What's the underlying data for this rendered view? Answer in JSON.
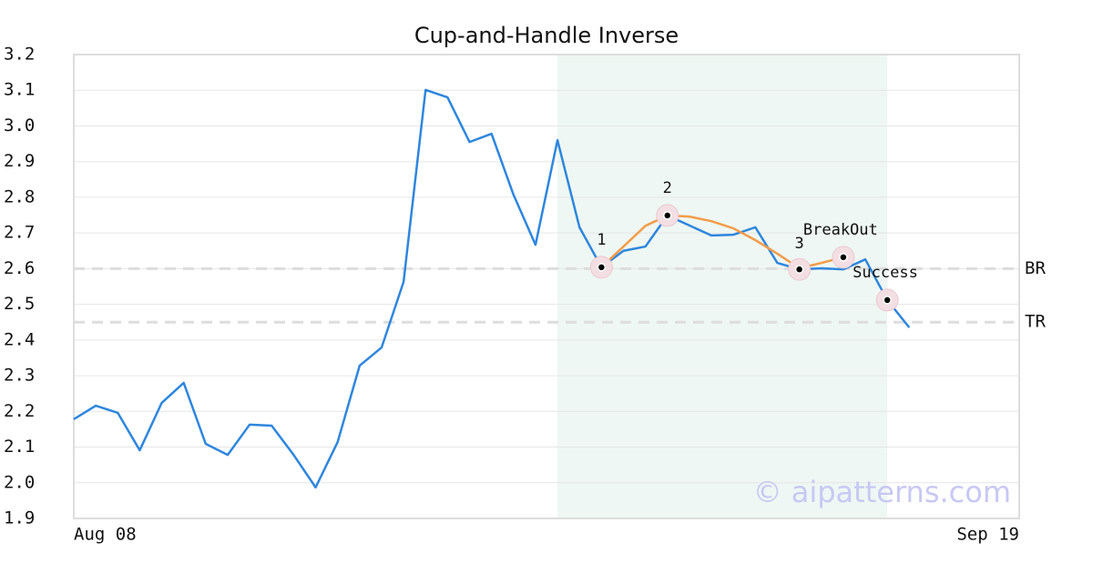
{
  "chart_data": {
    "type": "line",
    "title": "Cup-and-Handle Inverse",
    "x": [
      0,
      1,
      2,
      3,
      4,
      5,
      6,
      7,
      8,
      9,
      10,
      11,
      12,
      13,
      14,
      15,
      16,
      17,
      18,
      19,
      20,
      21,
      22,
      23,
      24,
      25,
      26,
      27,
      28,
      29,
      30,
      31,
      32,
      33,
      34,
      35,
      36,
      37,
      38
    ],
    "series": [
      {
        "color": "#2e86de",
        "values": [
          2.178,
          2.216,
          2.196,
          2.091,
          2.224,
          2.28,
          2.109,
          2.078,
          2.163,
          2.16,
          2.078,
          1.987,
          2.114,
          2.328,
          2.379,
          2.563,
          3.101,
          3.08,
          2.955,
          2.978,
          2.807,
          2.667,
          2.96,
          2.716,
          2.604,
          2.65,
          2.662,
          2.749,
          2.721,
          2.693,
          2.695,
          2.716,
          2.616,
          2.598,
          2.601,
          2.598,
          2.626,
          2.512,
          2.435
        ]
      }
    ],
    "pattern_line": {
      "color": "#f39c4a",
      "x": [
        24,
        26,
        27,
        28,
        29,
        30,
        31,
        32,
        33,
        34,
        35
      ],
      "values": [
        2.604,
        2.72,
        2.749,
        2.746,
        2.733,
        2.713,
        2.68,
        2.642,
        2.601,
        2.616,
        2.632
      ]
    },
    "points": [
      {
        "label": "1",
        "x": 24,
        "value": 2.604
      },
      {
        "label": "2",
        "x": 27,
        "value": 2.749
      },
      {
        "label": "3",
        "x": 33,
        "value": 2.598
      },
      {
        "label": "BreakOut",
        "x": 35,
        "value": 2.632
      },
      {
        "label": "Success",
        "x": 37,
        "value": 2.512
      }
    ],
    "levels": [
      {
        "label": "BR",
        "value": 2.6
      },
      {
        "label": "TR",
        "value": 2.45
      }
    ],
    "shaded_x": [
      22,
      37
    ],
    "xlim": [
      0,
      43
    ],
    "xticks": [
      {
        "value": 0,
        "label": "Aug 08"
      },
      {
        "value": 43,
        "label": "Sep 19"
      }
    ],
    "ylim": [
      1.9,
      3.2
    ],
    "yticks": [
      1.9,
      {
        "value": 2,
        "label": "2.0"
      },
      2.1,
      2.2,
      2.3,
      2.4,
      2.5,
      2.6,
      2.7,
      2.8,
      2.9,
      {
        "value": 3,
        "label": "3.0"
      },
      3.1,
      3.2
    ],
    "grid": true,
    "watermark": "© aipatterns.com"
  }
}
